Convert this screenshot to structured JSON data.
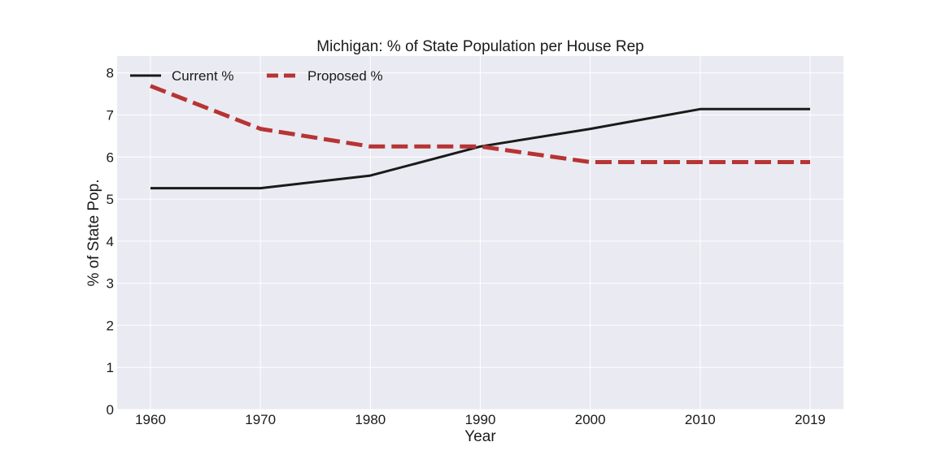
{
  "chart_data": {
    "type": "line",
    "title": "Michigan: % of State Population per House Rep",
    "xlabel": "Year",
    "ylabel": "% of State Pop.",
    "categories": [
      "1960",
      "1970",
      "1980",
      "1990",
      "2000",
      "2010",
      "2019"
    ],
    "ylim": [
      0,
      8.4
    ],
    "yticks": [
      "0",
      "1",
      "2",
      "3",
      "4",
      "5",
      "6",
      "7",
      "8"
    ],
    "grid": true,
    "legend_position": "top-left",
    "background_color": "#eaeaf2",
    "series": [
      {
        "name": "Current %",
        "values": [
          5.26,
          5.26,
          5.56,
          6.25,
          6.67,
          7.14,
          7.14
        ],
        "color": "#1a1a1a",
        "style": "solid"
      },
      {
        "name": "Proposed %",
        "values": [
          7.69,
          6.67,
          6.25,
          6.25,
          5.88,
          5.88,
          5.88
        ],
        "color": "#b73434",
        "style": "dashed"
      }
    ]
  }
}
